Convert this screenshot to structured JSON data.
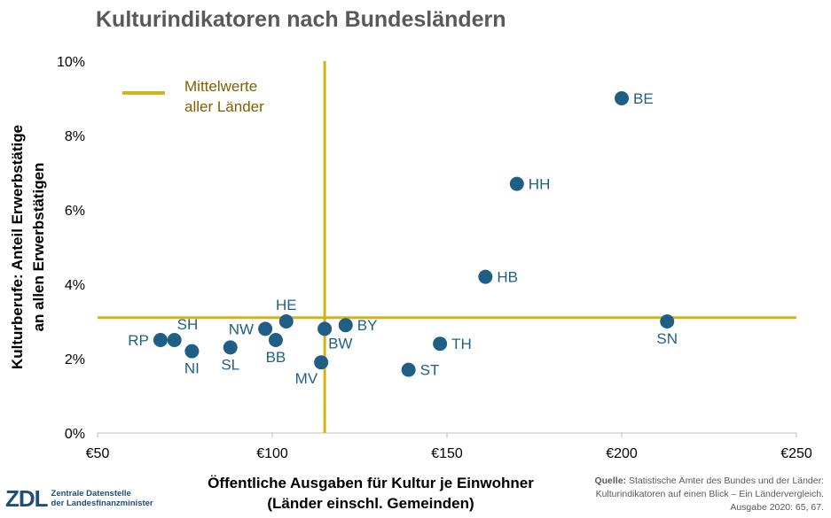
{
  "title": "Kulturindikatoren nach Bundesländern",
  "chart_data": {
    "type": "scatter",
    "title": "Kulturindikatoren nach Bundesländern",
    "xlabel_line1": "Öffentliche Ausgaben für Kultur je Einwohner",
    "xlabel_line2": "(Länder einschl. Gemeinden)",
    "ylabel_line1": "Kulturberufe: Anteil Erwerbstätige",
    "ylabel_line2": "an allen Erwerbstätigen",
    "xlim": [
      50,
      250
    ],
    "ylim": [
      0,
      10
    ],
    "x_ticks": [
      50,
      100,
      150,
      200,
      250
    ],
    "x_tick_labels": [
      "€50",
      "€100",
      "€150",
      "€200",
      "€250"
    ],
    "y_ticks": [
      0,
      2,
      4,
      6,
      8,
      10
    ],
    "y_tick_labels": [
      "0%",
      "2%",
      "4%",
      "6%",
      "8%",
      "10%"
    ],
    "point_color": "#1F5F86",
    "mean_line_color": "#D4B316",
    "mean_x": 115,
    "mean_y": 3.1,
    "legend": {
      "label_line1": "Mittelwerte",
      "label_line2": "aller Länder",
      "position": "top-left"
    },
    "points": [
      {
        "label": "BE",
        "x": 200,
        "y": 9.0,
        "label_pos": "right"
      },
      {
        "label": "HH",
        "x": 170,
        "y": 6.7,
        "label_pos": "right"
      },
      {
        "label": "HB",
        "x": 161,
        "y": 4.2,
        "label_pos": "right"
      },
      {
        "label": "SN",
        "x": 213,
        "y": 3.0,
        "label_pos": "below"
      },
      {
        "label": "HE",
        "x": 104,
        "y": 3.0,
        "label_pos": "above"
      },
      {
        "label": "BY",
        "x": 121,
        "y": 2.9,
        "label_pos": "right"
      },
      {
        "label": "BW",
        "x": 115,
        "y": 2.8,
        "label_pos": "below-right"
      },
      {
        "label": "NW",
        "x": 98,
        "y": 2.8,
        "label_pos": "left"
      },
      {
        "label": "BB",
        "x": 101,
        "y": 2.5,
        "label_pos": "below"
      },
      {
        "label": "SH",
        "x": 72,
        "y": 2.5,
        "label_pos": "above-right"
      },
      {
        "label": "RP",
        "x": 68,
        "y": 2.5,
        "label_pos": "left"
      },
      {
        "label": "TH",
        "x": 148,
        "y": 2.4,
        "label_pos": "right"
      },
      {
        "label": "SL",
        "x": 88,
        "y": 2.3,
        "label_pos": "below"
      },
      {
        "label": "NI",
        "x": 77,
        "y": 2.2,
        "label_pos": "below"
      },
      {
        "label": "MV",
        "x": 114,
        "y": 1.9,
        "label_pos": "below-left"
      },
      {
        "label": "ST",
        "x": 139,
        "y": 1.7,
        "label_pos": "right"
      }
    ]
  },
  "source": {
    "label": "Quelle:",
    "line1": "Statistische Ämter des Bundes und der Länder:",
    "line2": "Kulturindikatoren auf einen Blick – Ein Ländervergleich.",
    "line3": "Ausgabe 2020: 65, 67."
  },
  "logo": {
    "mark": "ZDL",
    "line1": "Zentrale Datenstelle",
    "line2": "der Landesfinanzminister"
  }
}
